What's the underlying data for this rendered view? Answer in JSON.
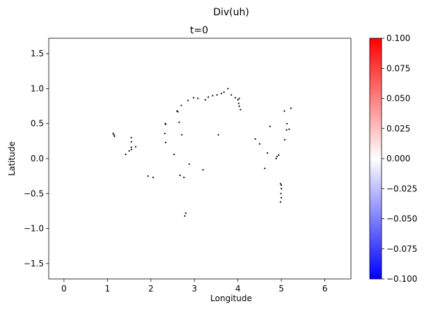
{
  "chart_data": {
    "type": "scatter",
    "suptitle": "Div(uh)",
    "title": "t=0",
    "xlabel": "Longitude",
    "ylabel": "Latitude",
    "xlim": [
      -0.35,
      6.6
    ],
    "ylim": [
      -1.72,
      1.72
    ],
    "xticks": [
      0,
      1,
      2,
      3,
      4,
      5,
      6
    ],
    "xtick_labels": [
      "0",
      "1",
      "2",
      "3",
      "4",
      "5",
      "6"
    ],
    "yticks": [
      -1.5,
      -1.0,
      -0.5,
      0.0,
      0.5,
      1.0,
      1.5
    ],
    "ytick_labels": [
      "−1.5",
      "−1.0",
      "−0.5",
      "0.0",
      "0.5",
      "1.0",
      "1.5"
    ],
    "grid": false,
    "marker_color": "#000000",
    "colorbar": {
      "cmap": "bwr",
      "min": -0.1,
      "max": 0.1,
      "ticks": [
        -0.1,
        -0.075,
        -0.05,
        -0.025,
        0.0,
        0.025,
        0.05,
        0.075,
        0.1
      ],
      "tick_labels": [
        "−0.100",
        "−0.075",
        "−0.050",
        "−0.025",
        "0.000",
        "0.025",
        "0.050",
        "0.075",
        "0.100"
      ],
      "colors": {
        "low": "#0000ff",
        "mid": "#ffffff",
        "high": "#ff0000"
      }
    },
    "points": [
      [
        1.13,
        0.36
      ],
      [
        1.15,
        0.34
      ],
      [
        1.16,
        0.32
      ],
      [
        1.42,
        0.06
      ],
      [
        1.5,
        0.11
      ],
      [
        1.55,
        0.3
      ],
      [
        1.55,
        0.24
      ],
      [
        1.55,
        0.16
      ],
      [
        1.55,
        0.13
      ],
      [
        1.65,
        0.17
      ],
      [
        1.93,
        -0.25
      ],
      [
        2.05,
        -0.27
      ],
      [
        2.32,
        0.36
      ],
      [
        2.33,
        0.5
      ],
      [
        2.34,
        0.49
      ],
      [
        2.34,
        0.23
      ],
      [
        2.53,
        0.06
      ],
      [
        2.6,
        0.68
      ],
      [
        2.62,
        0.67
      ],
      [
        2.65,
        0.52
      ],
      [
        2.67,
        -0.24
      ],
      [
        2.7,
        0.76
      ],
      [
        2.71,
        0.34
      ],
      [
        2.76,
        -0.27
      ],
      [
        2.8,
        -0.78
      ],
      [
        2.78,
        -0.82
      ],
      [
        2.85,
        0.83
      ],
      [
        2.88,
        -0.08
      ],
      [
        2.98,
        0.87
      ],
      [
        3.08,
        0.86
      ],
      [
        3.2,
        -0.16
      ],
      [
        3.25,
        0.84
      ],
      [
        3.32,
        0.88
      ],
      [
        3.42,
        0.9
      ],
      [
        3.52,
        0.91
      ],
      [
        3.55,
        0.34
      ],
      [
        3.62,
        0.93
      ],
      [
        3.68,
        0.95
      ],
      [
        3.77,
        1.0
      ],
      [
        3.85,
        0.91
      ],
      [
        3.94,
        0.87
      ],
      [
        4.0,
        0.84
      ],
      [
        4.02,
        0.79
      ],
      [
        4.03,
        0.75
      ],
      [
        4.06,
        0.7
      ],
      [
        4.03,
        0.86
      ],
      [
        4.4,
        0.28
      ],
      [
        4.5,
        0.21
      ],
      [
        4.62,
        -0.14
      ],
      [
        4.68,
        0.08
      ],
      [
        4.74,
        0.46
      ],
      [
        4.88,
        0.0
      ],
      [
        4.9,
        0.03
      ],
      [
        4.94,
        0.05
      ],
      [
        4.98,
        -0.36
      ],
      [
        5.0,
        -0.43
      ],
      [
        4.99,
        -0.5
      ],
      [
        5.0,
        -0.56
      ],
      [
        4.98,
        -0.62
      ],
      [
        5.0,
        -0.38
      ],
      [
        5.07,
        0.68
      ],
      [
        5.08,
        0.27
      ],
      [
        5.12,
        0.41
      ],
      [
        5.13,
        0.5
      ],
      [
        5.18,
        0.42
      ],
      [
        5.22,
        0.72
      ]
    ]
  }
}
